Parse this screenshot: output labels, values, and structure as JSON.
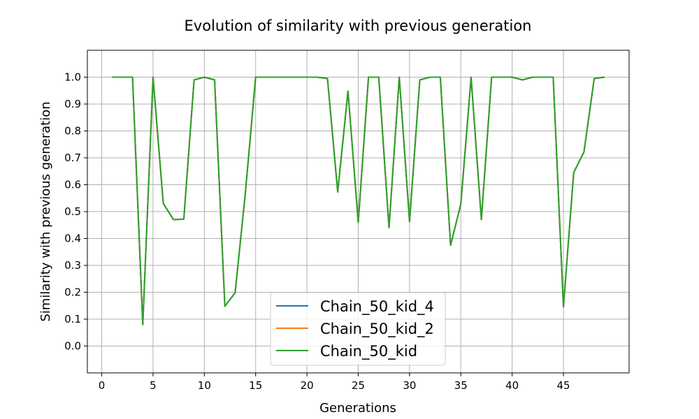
{
  "chart_data": {
    "type": "line",
    "title": "Evolution of similarity with previous generation",
    "xlabel": "Generations",
    "ylabel": "Similarity with previous generation",
    "xlim": [
      -1.4,
      51.4
    ],
    "ylim": [
      -0.1,
      1.1
    ],
    "xticks": [
      0,
      5,
      10,
      15,
      20,
      25,
      30,
      35,
      40,
      45
    ],
    "yticks": [
      0.0,
      0.1,
      0.2,
      0.3,
      0.4,
      0.5,
      0.6,
      0.7,
      0.8,
      0.9,
      1.0
    ],
    "ytick_labels": [
      "0.0",
      "0.1",
      "0.2",
      "0.3",
      "0.4",
      "0.5",
      "0.6",
      "0.7",
      "0.8",
      "0.9",
      "1.0"
    ],
    "grid": true,
    "legend_position": "bottom-center",
    "x": [
      1,
      2,
      3,
      4,
      5,
      6,
      7,
      8,
      9,
      10,
      11,
      12,
      13,
      14,
      15,
      16,
      17,
      18,
      19,
      20,
      21,
      22,
      23,
      24,
      25,
      26,
      27,
      28,
      29,
      30,
      31,
      32,
      33,
      34,
      35,
      36,
      37,
      38,
      39,
      40,
      41,
      42,
      43,
      44,
      45,
      46,
      47,
      48,
      49
    ],
    "series": [
      {
        "name": "Chain_50_kid_4",
        "color": "#1f77b4",
        "values": [
          1.0,
          1.0,
          1.0,
          0.08,
          1.0,
          0.53,
          0.47,
          0.472,
          0.99,
          1.0,
          0.99,
          0.148,
          0.198,
          0.57,
          1.0,
          1.0,
          1.0,
          1.0,
          1.0,
          1.0,
          1.0,
          0.995,
          0.573,
          0.948,
          0.46,
          1.0,
          1.0,
          0.44,
          1.0,
          0.463,
          0.99,
          1.0,
          1.0,
          0.375,
          0.528,
          1.0,
          0.47,
          1.0,
          1.0,
          1.0,
          0.99,
          1.0,
          1.0,
          1.0,
          0.146,
          0.645,
          0.722,
          0.995,
          1.0
        ]
      },
      {
        "name": "Chain_50_kid_2",
        "color": "#ff7f0e",
        "values": [
          1.0,
          1.0,
          1.0,
          0.08,
          1.0,
          0.53,
          0.47,
          0.472,
          0.99,
          1.0,
          0.99,
          0.148,
          0.198,
          0.57,
          1.0,
          1.0,
          1.0,
          1.0,
          1.0,
          1.0,
          1.0,
          0.995,
          0.573,
          0.948,
          0.46,
          1.0,
          1.0,
          0.44,
          1.0,
          0.463,
          0.99,
          1.0,
          1.0,
          0.375,
          0.528,
          1.0,
          0.47,
          1.0,
          1.0,
          1.0,
          0.99,
          1.0,
          1.0,
          1.0,
          0.146,
          0.645,
          0.722,
          0.995,
          1.0
        ]
      },
      {
        "name": "Chain_50_kid",
        "color": "#2ca02c",
        "values": [
          1.0,
          1.0,
          1.0,
          0.08,
          1.0,
          0.53,
          0.47,
          0.472,
          0.99,
          1.0,
          0.99,
          0.148,
          0.198,
          0.57,
          1.0,
          1.0,
          1.0,
          1.0,
          1.0,
          1.0,
          1.0,
          0.995,
          0.573,
          0.948,
          0.46,
          1.0,
          1.0,
          0.44,
          1.0,
          0.463,
          0.99,
          1.0,
          1.0,
          0.375,
          0.528,
          1.0,
          0.47,
          1.0,
          1.0,
          1.0,
          0.99,
          1.0,
          1.0,
          1.0,
          0.146,
          0.645,
          0.722,
          0.995,
          1.0
        ]
      }
    ]
  }
}
